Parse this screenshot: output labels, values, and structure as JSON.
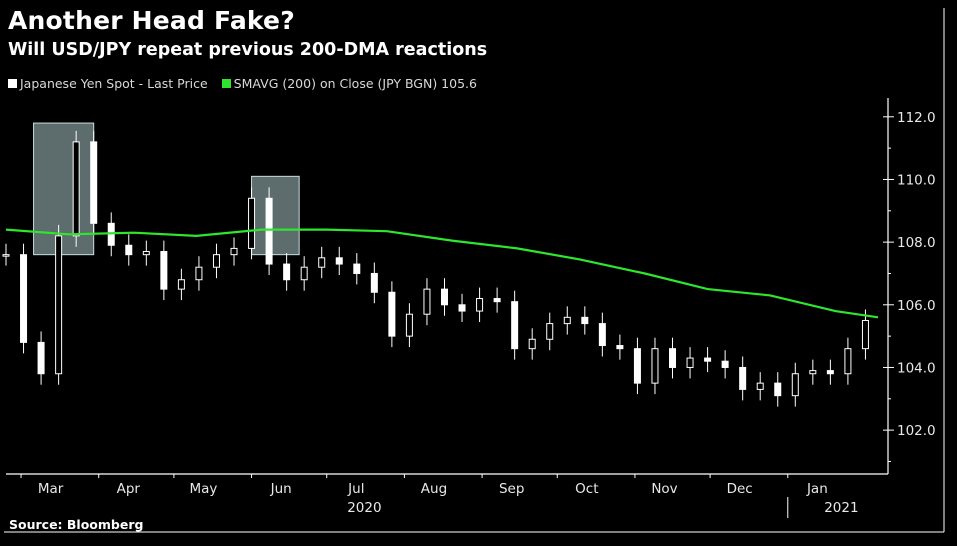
{
  "title": "Another Head Fake?",
  "subtitle": "Will USD/JPY repeat previous 200-DMA reactions",
  "source": "Source: Bloomberg",
  "colors": {
    "price": "#ffffff",
    "sma": "#2ee62e",
    "box": "#a9c4c4",
    "background": "#000000"
  },
  "chart_data": {
    "type": "line",
    "title": "Another Head Fake?",
    "ylim": [
      100.6,
      112.6
    ],
    "yticks": [
      102.0,
      104.0,
      106.0,
      108.0,
      110.0,
      112.0
    ],
    "ytick_labels": [
      "102.0",
      "104.0",
      "106.0",
      "108.0",
      "110.0",
      "112.0"
    ],
    "y_axis_side": "right",
    "grid": false,
    "legend_placement": "top-left",
    "xlim": [
      "2020-02-24",
      "2021-02-10"
    ],
    "month_labels": [
      {
        "label": "Mar",
        "date": "2020-03-16"
      },
      {
        "label": "Apr",
        "date": "2020-04-16"
      },
      {
        "label": "May",
        "date": "2020-05-16"
      },
      {
        "label": "Jun",
        "date": "2020-06-16"
      },
      {
        "label": "Jul",
        "date": "2020-07-16"
      },
      {
        "label": "Aug",
        "date": "2020-08-16"
      },
      {
        "label": "Sep",
        "date": "2020-09-16"
      },
      {
        "label": "Oct",
        "date": "2020-10-16"
      },
      {
        "label": "Nov",
        "date": "2020-11-16"
      },
      {
        "label": "Dec",
        "date": "2020-12-16"
      },
      {
        "label": "Jan",
        "date": "2021-01-16"
      }
    ],
    "year_labels": [
      {
        "label": "2020",
        "date": "2020-08-01"
      },
      {
        "label": "2021",
        "date": "2021-01-20"
      }
    ],
    "year_divider": "2021-01-01",
    "series": [
      {
        "name": "Japanese Yen Spot - Last Price",
        "style": "candlestick",
        "x": [
          "2020-02-24",
          "2020-03-02",
          "2020-03-09",
          "2020-03-16",
          "2020-03-23",
          "2020-03-30",
          "2020-04-06",
          "2020-04-13",
          "2020-04-20",
          "2020-04-27",
          "2020-05-04",
          "2020-05-11",
          "2020-05-18",
          "2020-05-25",
          "2020-06-01",
          "2020-06-08",
          "2020-06-15",
          "2020-06-22",
          "2020-06-29",
          "2020-07-06",
          "2020-07-13",
          "2020-07-20",
          "2020-07-27",
          "2020-08-03",
          "2020-08-10",
          "2020-08-17",
          "2020-08-24",
          "2020-08-31",
          "2020-09-07",
          "2020-09-14",
          "2020-09-21",
          "2020-09-28",
          "2020-10-05",
          "2020-10-12",
          "2020-10-19",
          "2020-10-26",
          "2020-11-02",
          "2020-11-09",
          "2020-11-16",
          "2020-11-23",
          "2020-11-30",
          "2020-12-07",
          "2020-12-14",
          "2020-12-21",
          "2020-12-28",
          "2021-01-04",
          "2021-01-11",
          "2021-01-18",
          "2021-01-25",
          "2021-02-01"
        ],
        "values": [
          107.6,
          104.8,
          103.8,
          108.2,
          111.2,
          108.6,
          107.9,
          107.6,
          107.7,
          106.5,
          106.8,
          107.2,
          107.6,
          107.8,
          109.4,
          107.3,
          106.8,
          107.2,
          107.5,
          107.3,
          107.0,
          106.4,
          105.0,
          105.7,
          106.5,
          106.0,
          105.8,
          106.2,
          106.1,
          104.6,
          104.9,
          105.4,
          105.6,
          105.4,
          104.7,
          104.6,
          103.5,
          104.6,
          104.0,
          104.3,
          104.2,
          104.0,
          103.3,
          103.5,
          103.1,
          103.8,
          103.9,
          103.8,
          104.6,
          105.5
        ]
      },
      {
        "name": "SMAVG (200)  on Close (JPY BGN) 105.6",
        "style": "line",
        "x": [
          "2020-02-24",
          "2020-03-20",
          "2020-04-15",
          "2020-05-10",
          "2020-06-05",
          "2020-07-01",
          "2020-07-25",
          "2020-08-20",
          "2020-09-15",
          "2020-10-10",
          "2020-11-05",
          "2020-11-30",
          "2020-12-25",
          "2021-01-20",
          "2021-02-06"
        ],
        "values": [
          108.4,
          108.25,
          108.3,
          108.2,
          108.4,
          108.4,
          108.35,
          108.05,
          107.8,
          107.45,
          107.0,
          106.5,
          106.3,
          105.8,
          105.6
        ]
      }
    ],
    "annotations": [
      {
        "type": "box",
        "x0": "2020-03-06",
        "x1": "2020-03-30",
        "y0": 107.6,
        "y1": 111.8
      },
      {
        "type": "box",
        "x0": "2020-06-01",
        "x1": "2020-06-20",
        "y0": 107.6,
        "y1": 110.1
      }
    ]
  }
}
